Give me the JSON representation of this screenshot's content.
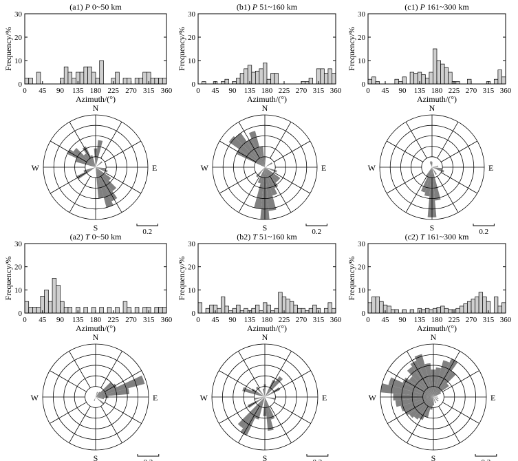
{
  "colors": {
    "bar_fill": "#cfcfcf",
    "rose_fill": "#808080",
    "line": "#000000"
  },
  "common": {
    "xlabel": "Azimuth/(°)",
    "ylabel": "Frequency/%",
    "xticks": [
      "0",
      "45",
      "90",
      "135",
      "180",
      "225",
      "270",
      "315",
      "360"
    ],
    "yticks": [
      "0",
      "10",
      "20",
      "30"
    ],
    "compass": {
      "n": "N",
      "e": "E",
      "s": "S",
      "w": "W"
    },
    "scale_label": "0.2"
  },
  "chart_data": [
    {
      "type": "bar",
      "id": "a1",
      "title_prefix": "(a1) ",
      "title_var": "P",
      "title_rest": " 0~50 km",
      "xlabel": "Azimuth/(°)",
      "ylabel": "Frequency/%",
      "xlim": [
        0,
        360
      ],
      "ylim": [
        0,
        30
      ],
      "bin_width": 10,
      "values": [
        2.5,
        2.5,
        0,
        5,
        0,
        0,
        0,
        0,
        0,
        2.5,
        7.3,
        5,
        2.5,
        5,
        5,
        7.3,
        7.3,
        5,
        2.5,
        10,
        0,
        0,
        2.5,
        5,
        0,
        2.5,
        2.5,
        0,
        2.5,
        2.5,
        5,
        5,
        2.5,
        2.5,
        2.5,
        2.5
      ]
    },
    {
      "type": "bar",
      "id": "b1",
      "title_prefix": "(b1) ",
      "title_var": "P",
      "title_rest": " 51~160 km",
      "xlabel": "Azimuth/(°)",
      "ylabel": "Frequency/%",
      "xlim": [
        0,
        360
      ],
      "ylim": [
        0,
        30
      ],
      "bin_width": 10,
      "values": [
        0,
        1,
        0,
        0,
        1,
        0,
        1,
        2,
        0,
        1,
        2.5,
        4.5,
        6.5,
        8,
        5,
        5.5,
        6.5,
        9,
        2,
        4.5,
        4.5,
        0,
        0,
        0,
        0,
        0,
        0,
        1,
        1,
        2.5,
        0,
        6.5,
        6.5,
        4.5,
        6.5,
        4.5
      ]
    },
    {
      "type": "bar",
      "id": "c1",
      "title_prefix": "(c1) ",
      "title_var": "P",
      "title_rest": " 161~300 km",
      "xlabel": "Azimuth/(°)",
      "ylabel": "Frequency/%",
      "xlim": [
        0,
        360
      ],
      "ylim": [
        0,
        30
      ],
      "bin_width": 10,
      "values": [
        2,
        3,
        1,
        0,
        0,
        0,
        0,
        2,
        1,
        3,
        0,
        5,
        4.5,
        5,
        4,
        2.5,
        5,
        15,
        10,
        8.5,
        7,
        5,
        1,
        1,
        0,
        0,
        2,
        0,
        0,
        0,
        0,
        1,
        0,
        2,
        6,
        3
      ]
    },
    {
      "type": "rose",
      "id": "a1-rose",
      "scale": 0.2,
      "rings": 5,
      "max_value": 0.5,
      "petals": [
        {
          "angle": 0,
          "value": 0.18
        },
        {
          "angle": 10,
          "value": 0.26
        },
        {
          "angle": 340,
          "value": 0.12
        },
        {
          "angle": 330,
          "value": 0.22
        },
        {
          "angle": 320,
          "value": 0.16
        },
        {
          "angle": 310,
          "value": 0.26
        },
        {
          "angle": 300,
          "value": 0.3
        },
        {
          "angle": 290,
          "value": 0.2
        },
        {
          "angle": 110,
          "value": 0.12
        },
        {
          "angle": 130,
          "value": 0.18
        },
        {
          "angle": 140,
          "value": 0.28
        },
        {
          "angle": 150,
          "value": 0.36
        },
        {
          "angle": 160,
          "value": 0.4
        },
        {
          "angle": 170,
          "value": 0.3
        },
        {
          "angle": 240,
          "value": 0.2
        },
        {
          "angle": 250,
          "value": 0.12
        },
        {
          "angle": 100,
          "value": 0.1
        },
        {
          "angle": 50,
          "value": 0.08
        }
      ]
    },
    {
      "type": "rose",
      "id": "b1-rose",
      "scale": 0.2,
      "rings": 5,
      "max_value": 0.5,
      "petals": [
        {
          "angle": 300,
          "value": 0.3
        },
        {
          "angle": 310,
          "value": 0.42
        },
        {
          "angle": 320,
          "value": 0.4
        },
        {
          "angle": 330,
          "value": 0.3
        },
        {
          "angle": 340,
          "value": 0.36
        },
        {
          "angle": 350,
          "value": 0.2
        },
        {
          "angle": 0,
          "value": 0.1
        },
        {
          "angle": 140,
          "value": 0.18
        },
        {
          "angle": 150,
          "value": 0.22
        },
        {
          "angle": 160,
          "value": 0.28
        },
        {
          "angle": 170,
          "value": 0.42
        },
        {
          "angle": 180,
          "value": 0.5
        },
        {
          "angle": 190,
          "value": 0.4
        },
        {
          "angle": 200,
          "value": 0.16
        },
        {
          "angle": 220,
          "value": 0.12
        },
        {
          "angle": 60,
          "value": 0.08
        },
        {
          "angle": 110,
          "value": 0.12
        },
        {
          "angle": 130,
          "value": 0.18
        }
      ]
    },
    {
      "type": "rose",
      "id": "c1-rose",
      "scale": 0.2,
      "rings": 5,
      "max_value": 0.5,
      "petals": [
        {
          "angle": 170,
          "value": 0.32
        },
        {
          "angle": 180,
          "value": 0.48
        },
        {
          "angle": 190,
          "value": 0.28
        },
        {
          "angle": 200,
          "value": 0.25
        },
        {
          "angle": 210,
          "value": 0.1
        },
        {
          "angle": 110,
          "value": 0.12
        },
        {
          "angle": 100,
          "value": 0.1
        },
        {
          "angle": 80,
          "value": 0.06
        },
        {
          "angle": 350,
          "value": 0.06
        },
        {
          "angle": 0,
          "value": 0.05
        },
        {
          "angle": 340,
          "value": 0.05
        },
        {
          "angle": 150,
          "value": 0.08
        }
      ]
    },
    {
      "type": "bar",
      "id": "a2",
      "title_prefix": "(a2) ",
      "title_var": "T",
      "title_rest": " 0~50 km",
      "xlabel": "Azimuth/(°)",
      "ylabel": "Frequency/%",
      "xlim": [
        0,
        360
      ],
      "ylim": [
        0,
        30
      ],
      "bin_width": 10,
      "values": [
        5,
        2.5,
        2.5,
        2.5,
        7.3,
        10,
        5,
        15,
        12,
        5,
        2.5,
        2.5,
        0,
        2.5,
        0,
        2.5,
        0,
        2.5,
        0,
        2.5,
        0,
        2.5,
        0,
        2.5,
        0,
        5,
        2.5,
        0,
        2.5,
        0,
        2.5,
        2.5,
        0,
        2.5,
        2.5,
        2.5
      ]
    },
    {
      "type": "bar",
      "id": "b2",
      "title_prefix": "(b2) ",
      "title_var": "T",
      "title_rest": " 51~160 km",
      "xlabel": "Azimuth/(°)",
      "ylabel": "Frequency/%",
      "xlim": [
        0,
        360
      ],
      "ylim": [
        0,
        30
      ],
      "bin_width": 10,
      "values": [
        4.5,
        0,
        2,
        3.5,
        3.5,
        2,
        7,
        3,
        1,
        2,
        3.5,
        1,
        2,
        1,
        2,
        3.5,
        1,
        4.5,
        3.5,
        1,
        2,
        9,
        7,
        6,
        5,
        3.5,
        2,
        2,
        1,
        2,
        3.5,
        2,
        0,
        2,
        4.5,
        2
      ]
    },
    {
      "type": "bar",
      "id": "c2",
      "title_prefix": "(c2) ",
      "title_var": "T",
      "title_rest": " 161~300 km",
      "xlabel": "Azimuth/(°)",
      "ylabel": "Frequency/%",
      "xlim": [
        0,
        360
      ],
      "ylim": [
        0,
        30
      ],
      "bin_width": 10,
      "values": [
        4.5,
        7,
        7,
        5,
        3.5,
        3,
        1.5,
        1.5,
        0,
        1.5,
        0,
        1.5,
        0,
        2,
        1.5,
        2,
        1.5,
        2,
        2.5,
        3,
        2,
        1.5,
        1.5,
        2,
        3,
        4,
        5,
        6,
        7,
        9,
        7,
        5,
        0,
        7,
        3,
        4.5
      ]
    },
    {
      "type": "rose",
      "id": "a2-rose",
      "scale": 0.2,
      "rings": 5,
      "max_value": 0.5,
      "petals": [
        {
          "angle": 70,
          "value": 0.48
        },
        {
          "angle": 80,
          "value": 0.32
        },
        {
          "angle": 60,
          "value": 0.22
        },
        {
          "angle": 50,
          "value": 0.2
        },
        {
          "angle": 90,
          "value": 0.12
        },
        {
          "angle": 100,
          "value": 0.08
        },
        {
          "angle": 40,
          "value": 0.06
        },
        {
          "angle": 20,
          "value": 0.05
        },
        {
          "angle": 130,
          "value": 0.1
        },
        {
          "angle": 200,
          "value": 0.04
        }
      ]
    },
    {
      "type": "rose",
      "id": "b2-rose",
      "scale": 0.2,
      "rings": 5,
      "max_value": 0.5,
      "petals": [
        {
          "angle": 30,
          "value": 0.18
        },
        {
          "angle": 40,
          "value": 0.24
        },
        {
          "angle": 60,
          "value": 0.16
        },
        {
          "angle": 0,
          "value": 0.12
        },
        {
          "angle": 350,
          "value": 0.08
        },
        {
          "angle": 100,
          "value": 0.1
        },
        {
          "angle": 160,
          "value": 0.22
        },
        {
          "angle": 170,
          "value": 0.32
        },
        {
          "angle": 180,
          "value": 0.18
        },
        {
          "angle": 200,
          "value": 0.22
        },
        {
          "angle": 210,
          "value": 0.4
        },
        {
          "angle": 220,
          "value": 0.36
        },
        {
          "angle": 240,
          "value": 0.18
        },
        {
          "angle": 260,
          "value": 0.1
        },
        {
          "angle": 290,
          "value": 0.22
        },
        {
          "angle": 300,
          "value": 0.14
        },
        {
          "angle": 320,
          "value": 0.12
        }
      ]
    },
    {
      "type": "rose",
      "id": "c2-rose",
      "scale": 0.2,
      "rings": 5,
      "max_value": 0.5,
      "petals": [
        {
          "angle": 350,
          "value": 0.32
        },
        {
          "angle": 0,
          "value": 0.26
        },
        {
          "angle": 10,
          "value": 0.28
        },
        {
          "angle": 20,
          "value": 0.36
        },
        {
          "angle": 30,
          "value": 0.4
        },
        {
          "angle": 40,
          "value": 0.3
        },
        {
          "angle": 50,
          "value": 0.18
        },
        {
          "angle": 60,
          "value": 0.08
        },
        {
          "angle": 340,
          "value": 0.42
        },
        {
          "angle": 330,
          "value": 0.38
        },
        {
          "angle": 320,
          "value": 0.35
        },
        {
          "angle": 310,
          "value": 0.28
        },
        {
          "angle": 300,
          "value": 0.32
        },
        {
          "angle": 290,
          "value": 0.44
        },
        {
          "angle": 280,
          "value": 0.5
        },
        {
          "angle": 270,
          "value": 0.38
        },
        {
          "angle": 260,
          "value": 0.36
        },
        {
          "angle": 250,
          "value": 0.32
        },
        {
          "angle": 240,
          "value": 0.3
        },
        {
          "angle": 230,
          "value": 0.28
        },
        {
          "angle": 220,
          "value": 0.26
        },
        {
          "angle": 210,
          "value": 0.24
        },
        {
          "angle": 200,
          "value": 0.2
        },
        {
          "angle": 190,
          "value": 0.12
        },
        {
          "angle": 180,
          "value": 0.08
        },
        {
          "angle": 160,
          "value": 0.06
        },
        {
          "angle": 130,
          "value": 0.06
        },
        {
          "angle": 110,
          "value": 0.05
        },
        {
          "angle": 90,
          "value": 0.04
        }
      ]
    }
  ]
}
